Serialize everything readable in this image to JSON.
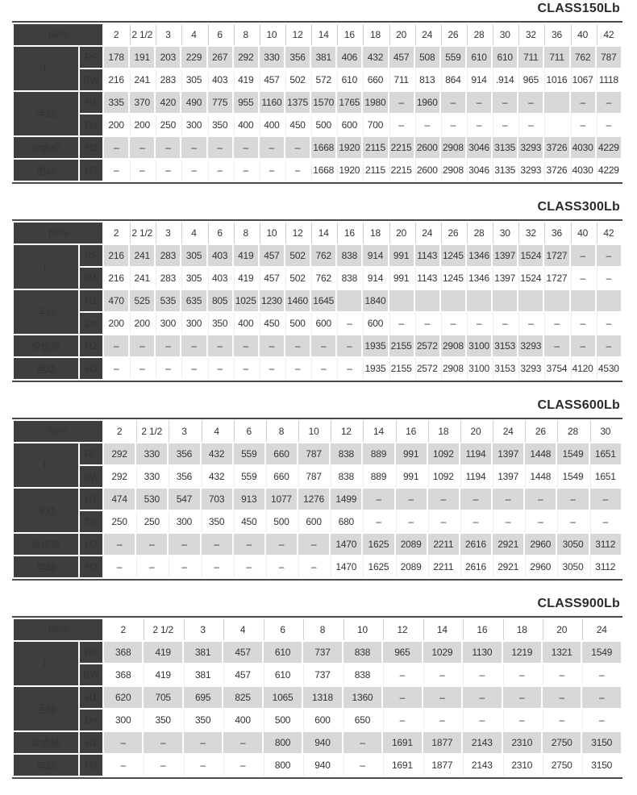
{
  "colors": {
    "header_dark": "#3e3e3e",
    "row_shade": "#d8d8d8",
    "table_border": "#4a4a4a",
    "title_text": "#2b2b2b"
  },
  "tables": [
    {
      "title": "CLASS150Lb",
      "corner_label": "NPS",
      "columns": [
        "2",
        "2 1/2",
        "3",
        "4",
        "6",
        "8",
        "10",
        "12",
        "14",
        "16",
        "18",
        "20",
        "24",
        "26",
        "28",
        "30",
        "32",
        "36",
        "40",
        "42"
      ],
      "groups": [
        {
          "label": "L",
          "rows": [
            {
              "code": "RF",
              "values": [
                "178",
                "191",
                "203",
                "229",
                "267",
                "292",
                "330",
                "356",
                "381",
                "406",
                "432",
                "457",
                "508",
                "559",
                "610",
                "610",
                "711",
                "711",
                "762",
                "787"
              ]
            },
            {
              "code": "BW",
              "values": [
                "216",
                "241",
                "283",
                "305",
                "403",
                "419",
                "457",
                "502",
                "572",
                "610",
                "660",
                "711",
                "813",
                "864",
                "914",
                ".914",
                "965",
                "1016",
                "1067",
                "1118"
              ]
            }
          ]
        },
        {
          "label": "手动",
          "rows": [
            {
              "code": "H1",
              "values": [
                "335",
                "370",
                "420",
                "490",
                "775",
                "955",
                "1160",
                "1375",
                "1570",
                "1765",
                "1980",
                "–",
                "1960",
                "–",
                "–",
                "–",
                "–",
                "",
                "–",
                "–"
              ]
            },
            {
              "code": "Do",
              "values": [
                "200",
                "200",
                "250",
                "300",
                "350",
                "400",
                "400",
                "450",
                "500",
                "600",
                "700",
                "–",
                "–",
                "–",
                "–",
                "–",
                "–",
                "",
                "–",
                "–"
              ]
            }
          ]
        },
        {
          "label": "伞齿轮",
          "rows": [
            {
              "code": "H2",
              "values": [
                "–",
                "–",
                "–",
                "–",
                "–",
                "–",
                "–",
                "–",
                "1668",
                "1920",
                "2115",
                "2215",
                "2600",
                "2908",
                "3046",
                "3135",
                "3293",
                "3726",
                "4030",
                "4229"
              ]
            }
          ]
        },
        {
          "label": "电动",
          "rows": [
            {
              "code": "H3",
              "values": [
                "–",
                "–",
                "–",
                "–",
                "–",
                "–",
                "–",
                "–",
                "1668",
                "1920",
                "2115",
                "2215",
                "2600",
                "2908",
                "3046",
                "3135",
                "3293",
                "3726",
                "4030",
                "4229"
              ]
            }
          ]
        }
      ]
    },
    {
      "title": "CLASS300Lb",
      "corner_label": "NPS",
      "columns": [
        "2",
        "2 1/2",
        "3",
        "4",
        "6",
        "8",
        "10",
        "12",
        "14",
        "16",
        "18",
        "20",
        "24",
        "26",
        "28",
        "30",
        "32",
        "36",
        "40",
        "42"
      ],
      "groups": [
        {
          "label": "L",
          "rows": [
            {
              "code": "RF",
              "values": [
                "216",
                "241",
                "283",
                "305",
                "403",
                "419",
                "457",
                "502",
                "762",
                "838",
                "914",
                "991",
                "1143",
                "1245",
                "1346",
                "1397",
                "1524",
                "1727",
                "–",
                "–"
              ]
            },
            {
              "code": "BW",
              "values": [
                "216",
                "241",
                "283",
                "305",
                "403",
                "419",
                "457",
                "502",
                "762",
                "838",
                "914",
                "991",
                "1143",
                "1245",
                "1346",
                "1397",
                "1524",
                "1727",
                "–",
                "–"
              ]
            }
          ]
        },
        {
          "label": "手动",
          "rows": [
            {
              "code": "H1",
              "values": [
                "470",
                "525",
                "535",
                "635",
                "805",
                "1025",
                "1230",
                "1460",
                "1645",
                "",
                "1840",
                "",
                "",
                "",
                "",
                "",
                "",
                "",
                "",
                ""
              ]
            },
            {
              "code": "Do",
              "values": [
                "200",
                "200",
                "300",
                "300",
                "350",
                "400",
                "450",
                "500",
                "600",
                "–",
                "600",
                "–",
                "–",
                "–",
                "–",
                "–",
                "–",
                "–",
                "–",
                "–"
              ]
            }
          ]
        },
        {
          "label": "伞齿轮",
          "rows": [
            {
              "code": "H2",
              "values": [
                "–",
                "–",
                "–",
                "–",
                "–",
                "–",
                "–",
                "–",
                "–",
                "–",
                "1935",
                "2155",
                "2572",
                "2908",
                "3100",
                "3153",
                "3293",
                "–",
                "–",
                "–"
              ]
            }
          ]
        },
        {
          "label": "电动",
          "rows": [
            {
              "code": "H3",
              "values": [
                "–",
                "–",
                "–",
                "–",
                "–",
                "–",
                "–",
                "–",
                "–",
                "–",
                "1935",
                "2155",
                "2572",
                "2908",
                "3100",
                "3153",
                "3293",
                "3754",
                "4120",
                "4530"
              ]
            }
          ]
        }
      ]
    },
    {
      "title": "CLASS600Lb",
      "corner_label": "NPS",
      "columns": [
        "2",
        "2 1/2",
        "3",
        "4",
        "6",
        "8",
        "10",
        "12",
        "14",
        "16",
        "18",
        "20",
        "24",
        "26",
        "28",
        "30"
      ],
      "groups": [
        {
          "label": "L",
          "rows": [
            {
              "code": "RF",
              "values": [
                "292",
                "330",
                "356",
                "432",
                "559",
                "660",
                "787",
                "838",
                "889",
                "991",
                "1092",
                "1194",
                "1397",
                "1448",
                "1549",
                "1651"
              ]
            },
            {
              "code": "BW",
              "values": [
                "292",
                "330",
                "356",
                "432",
                "559",
                "660",
                "787",
                "838",
                "889",
                "991",
                "1092",
                "1194",
                "1397",
                "1448",
                "1549",
                "1651"
              ]
            }
          ]
        },
        {
          "label": "手动",
          "rows": [
            {
              "code": "H1",
              "values": [
                "474",
                "530",
                "547",
                "703",
                "913",
                "1077",
                "1276",
                "1499",
                "–",
                "–",
                "–",
                "–",
                "–",
                "–",
                "–",
                "–"
              ]
            },
            {
              "code": "Do",
              "values": [
                "250",
                "250",
                "300",
                "350",
                "450",
                "500",
                "600",
                "680",
                "–",
                "–",
                "–",
                "–",
                "–",
                "–",
                "–",
                "–"
              ]
            }
          ]
        },
        {
          "label": "伞齿轮",
          "rows": [
            {
              "code": "H2",
              "values": [
                "–",
                "–",
                "–",
                "–",
                "–",
                "–",
                "–",
                "1470",
                "1625",
                "2089",
                "2211",
                "2616",
                "2921",
                "2960",
                "3050",
                "3112"
              ]
            }
          ]
        },
        {
          "label": "电动",
          "rows": [
            {
              "code": "H3",
              "values": [
                "–",
                "–",
                "–",
                "–",
                "–",
                "–",
                "–",
                "1470",
                "1625",
                "2089",
                "2211",
                "2616",
                "2921",
                "2960",
                "3050",
                "3112"
              ]
            }
          ]
        }
      ]
    },
    {
      "title": "CLASS900Lb",
      "corner_label": "NPS",
      "columns": [
        "2",
        "2 1/2",
        "3",
        "4",
        "6",
        "8",
        "10",
        "12",
        "14",
        "16",
        "18",
        "20",
        "24"
      ],
      "groups": [
        {
          "label": "L",
          "rows": [
            {
              "code": "RF",
              "values": [
                "368",
                "419",
                "381",
                "457",
                "610",
                "737",
                "838",
                "965",
                "1029",
                "1130",
                "1219",
                "1321",
                "1549"
              ]
            },
            {
              "code": "BW",
              "values": [
                "368",
                "419",
                "381",
                "457",
                "610",
                "737",
                "838",
                "–",
                "–",
                "–",
                "–",
                "–",
                "–"
              ]
            }
          ]
        },
        {
          "label": "手动",
          "rows": [
            {
              "code": "H1",
              "values": [
                "620",
                "705",
                "695",
                "825",
                "1065",
                "1318",
                "1360",
                "–",
                "–",
                "–",
                "–",
                "–",
                "–"
              ]
            },
            {
              "code": "Do",
              "values": [
                "300",
                "350",
                "350",
                "400",
                "500",
                "600",
                "650",
                "–",
                "–",
                "–",
                "–",
                "–",
                "–"
              ]
            }
          ]
        },
        {
          "label": "伞齿轮",
          "rows": [
            {
              "code": "H2",
              "values": [
                "–",
                "–",
                "–",
                "–",
                "800",
                "940",
                "–",
                "1691",
                "1877",
                "2143",
                "2310",
                "2750",
                "3150"
              ]
            }
          ]
        },
        {
          "label": "电动",
          "rows": [
            {
              "code": "H3",
              "values": [
                "–",
                "–",
                "–",
                "–",
                "800",
                "940",
                "–",
                "1691",
                "1877",
                "2143",
                "2310",
                "2750",
                "3150"
              ]
            }
          ]
        }
      ]
    }
  ]
}
